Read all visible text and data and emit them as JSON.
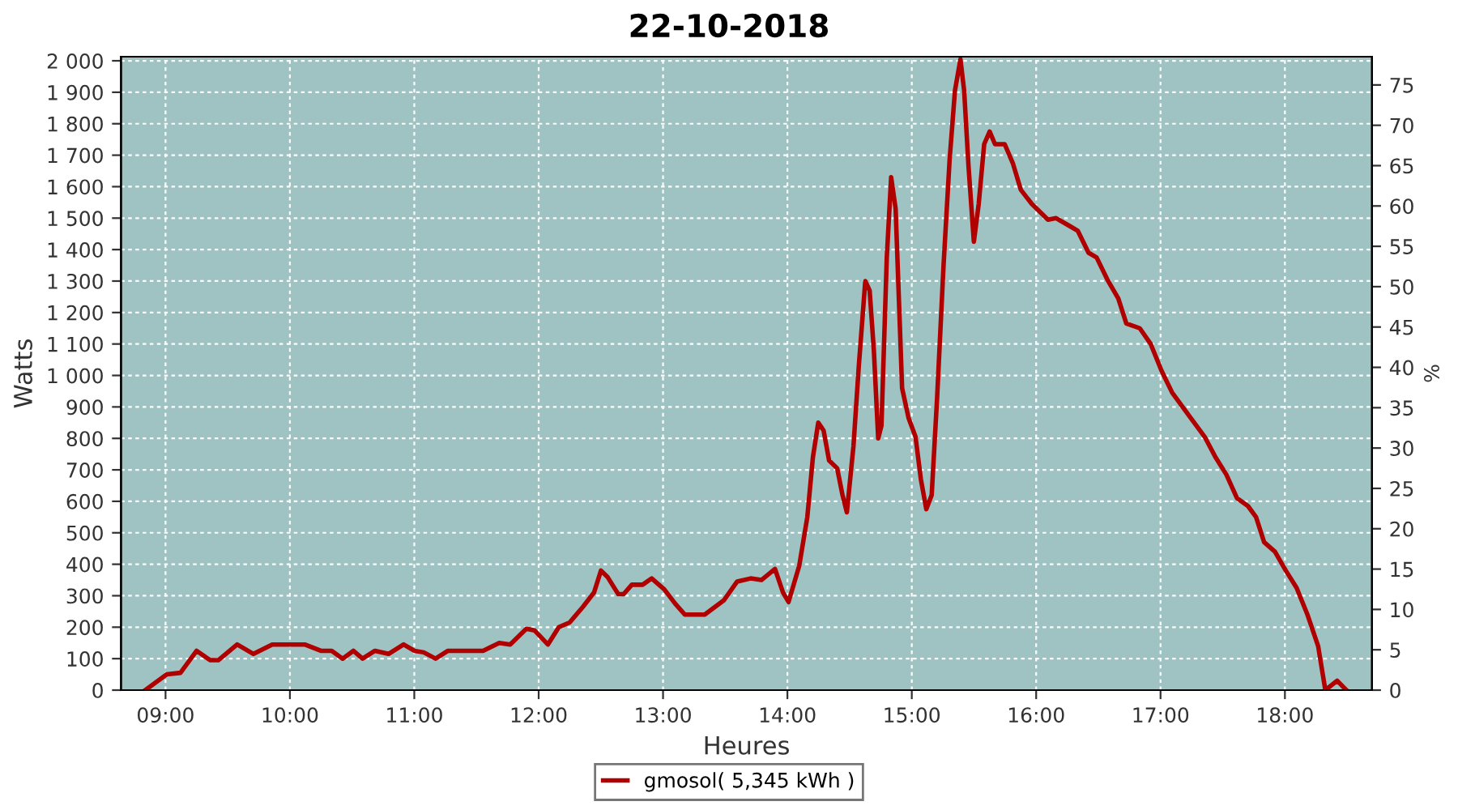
{
  "chart_data": {
    "type": "line",
    "title": "22-10-2018",
    "xlabel": "Heures",
    "ylabel": "Watts",
    "y2label": "%",
    "xlim": [
      8.642,
      18.7
    ],
    "xticks": [
      {
        "value": 9,
        "label": "09:00"
      },
      {
        "value": 10,
        "label": "10:00"
      },
      {
        "value": 11,
        "label": "11:00"
      },
      {
        "value": 12,
        "label": "12:00"
      },
      {
        "value": 13,
        "label": "13:00"
      },
      {
        "value": 14,
        "label": "14:00"
      },
      {
        "value": 15,
        "label": "15:00"
      },
      {
        "value": 16,
        "label": "16:00"
      },
      {
        "value": 17,
        "label": "17:00"
      },
      {
        "value": 18,
        "label": "18:00"
      }
    ],
    "ylim": [
      0,
      2013
    ],
    "yticks": [
      0,
      100,
      200,
      300,
      400,
      500,
      600,
      700,
      800,
      900,
      {
        "value": 1000,
        "label": "1 000"
      },
      {
        "value": 1100,
        "label": "1 100"
      },
      {
        "value": 1200,
        "label": "1 200"
      },
      {
        "value": 1300,
        "label": "1 300"
      },
      {
        "value": 1400,
        "label": "1 400"
      },
      {
        "value": 1500,
        "label": "1 500"
      },
      {
        "value": 1600,
        "label": "1 600"
      },
      {
        "value": 1700,
        "label": "1 700"
      },
      {
        "value": 1800,
        "label": "1 800"
      },
      {
        "value": 1900,
        "label": "1 900"
      },
      {
        "value": 2000,
        "label": "2 000"
      }
    ],
    "y2lim": [
      0,
      78.5
    ],
    "y2ticks": [
      0,
      5,
      10,
      15,
      20,
      25,
      30,
      35,
      40,
      45,
      50,
      55,
      60,
      65,
      70,
      75
    ],
    "grid": true,
    "legend": "bottom",
    "marker": "none",
    "line_style": "solid",
    "series": [
      {
        "name": "gmosol( 5,345 kWh )",
        "color": "#b00000",
        "x": [
          8.837,
          9.01,
          9.12,
          9.25,
          9.359,
          9.424,
          9.576,
          9.707,
          9.858,
          10.119,
          10.249,
          10.336,
          10.424,
          10.51,
          10.584,
          10.684,
          10.793,
          10.914,
          11.001,
          11.076,
          11.171,
          11.271,
          11.553,
          11.683,
          11.771,
          11.901,
          11.966,
          12.074,
          12.162,
          12.249,
          12.357,
          12.445,
          12.501,
          12.553,
          12.64,
          12.683,
          12.749,
          12.836,
          12.909,
          13.01,
          13.097,
          13.175,
          13.335,
          13.488,
          13.596,
          13.704,
          13.791,
          13.9,
          13.965,
          14.009,
          14.095,
          14.16,
          14.205,
          14.248,
          14.291,
          14.335,
          14.4,
          14.443,
          14.478,
          14.531,
          14.574,
          14.626,
          14.661,
          14.695,
          14.73,
          14.756,
          14.799,
          14.834,
          14.87,
          14.922,
          14.974,
          15.03,
          15.073,
          15.117,
          15.16,
          15.203,
          15.256,
          15.304,
          15.347,
          15.391,
          15.421,
          15.456,
          15.499,
          15.538,
          15.582,
          15.626,
          15.669,
          15.747,
          15.812,
          15.877,
          15.965,
          16.095,
          16.16,
          16.269,
          16.334,
          16.421,
          16.486,
          16.572,
          16.66,
          16.725,
          16.833,
          16.921,
          17.008,
          17.094,
          17.224,
          17.355,
          17.442,
          17.529,
          17.615,
          17.703,
          17.768,
          17.833,
          17.92,
          18.007,
          18.094,
          18.181,
          18.267,
          18.325,
          18.42,
          18.494
        ],
        "values": [
          0,
          50,
          55,
          125,
          95,
          95,
          145,
          115,
          145,
          145,
          125,
          125,
          100,
          125,
          100,
          125,
          115,
          145,
          125,
          120,
          100,
          125,
          125,
          150,
          145,
          195,
          190,
          145,
          200,
          215,
          265,
          310,
          380,
          360,
          305,
          305,
          335,
          335,
          355,
          320,
          275,
          240,
          240,
          285,
          345,
          355,
          350,
          385,
          310,
          280,
          395,
          550,
          740,
          850,
          825,
          730,
          705,
          620,
          565,
          775,
          1030,
          1300,
          1270,
          1080,
          800,
          840,
          1375,
          1630,
          1530,
          960,
          865,
          805,
          670,
          575,
          620,
          925,
          1355,
          1685,
          1905,
          2005,
          1905,
          1665,
          1425,
          1545,
          1735,
          1775,
          1735,
          1735,
          1675,
          1590,
          1545,
          1495,
          1500,
          1475,
          1460,
          1390,
          1375,
          1305,
          1245,
          1165,
          1150,
          1100,
          1015,
          945,
          875,
          805,
          740,
          685,
          610,
          585,
          550,
          470,
          440,
          380,
          325,
          240,
          140,
          0,
          30,
          0
        ]
      }
    ]
  }
}
